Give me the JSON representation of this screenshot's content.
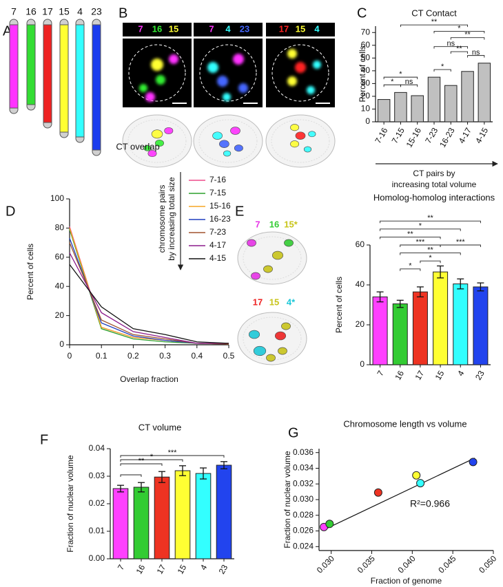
{
  "ideogram": {
    "panel": "A",
    "labels": [
      "7",
      "16",
      "17",
      "15",
      "4",
      "23"
    ],
    "colors": [
      "#ff33ff",
      "#33dd33",
      "#ee2222",
      "#ffff33",
      "#33ffff",
      "#1a3cee"
    ]
  },
  "microscopy": {
    "panel": "B",
    "headers": [
      {
        "labels": [
          "7",
          "16",
          "15"
        ],
        "colors": [
          "#ff33ff",
          "#33ee33",
          "#ffff33"
        ]
      },
      {
        "labels": [
          "7",
          "4",
          "23"
        ],
        "colors": [
          "#ff33ff",
          "#33ffff",
          "#4466ff"
        ]
      },
      {
        "labels": [
          "17",
          "15",
          "4"
        ],
        "colors": [
          "#ff2222",
          "#ffff33",
          "#33ffff"
        ]
      }
    ]
  },
  "renderings": {
    "headers": [
      {
        "labels": [
          "7",
          "16",
          "15*"
        ],
        "colors": [
          "#e633e6",
          "#33cc33",
          "#c8c41a"
        ]
      },
      {
        "labels": [
          "17",
          "15",
          "4*"
        ],
        "colors": [
          "#ee2222",
          "#c8c41a",
          "#1ec8d8"
        ]
      }
    ]
  },
  "chart_data": [
    {
      "type": "bar",
      "panel": "C",
      "title": "CT Contact",
      "categories": [
        "7-16",
        "7-15",
        "15-16",
        "7-23",
        "16-23",
        "4-17",
        "4-15"
      ],
      "values": [
        17.5,
        23,
        20.5,
        35,
        28.5,
        39.5,
        46
      ],
      "color": "#c0c0c0",
      "ylim": [
        0,
        75
      ],
      "yticks": [
        0,
        10,
        20,
        30,
        40,
        50,
        60,
        70
      ],
      "ylabel": "Percent of cells",
      "xlabel": [
        "CT pairs by",
        "increasing total volume"
      ],
      "annotations": [
        {
          "text": "**",
          "from": "7-15",
          "to": "4-17",
          "y": 76
        },
        {
          "text": "*",
          "from": "7-23",
          "to": "4-15",
          "y": 71
        },
        {
          "text": "**",
          "from": "16-23",
          "to": "4-15",
          "y": 66
        },
        {
          "text": "ns",
          "from": "7-23",
          "to": "4-17",
          "y": 59
        },
        {
          "text": "**",
          "from": "16-23",
          "to": "4-17",
          "y": 55
        },
        {
          "text": "ns",
          "from": "4-17",
          "to": "4-15",
          "y": 52
        },
        {
          "text": "*",
          "from": "7-23",
          "to": "16-23",
          "y": 41
        },
        {
          "text": "*",
          "from": "7-16",
          "to": "15-16",
          "y": 35
        },
        {
          "text": "*",
          "from": "7-16",
          "to": "7-15",
          "y": 29
        },
        {
          "text": "ns",
          "from": "7-15",
          "to": "15-16",
          "y": 29
        }
      ]
    },
    {
      "type": "line",
      "panel": "D",
      "title": "CT overlap",
      "x": [
        0,
        0.1,
        0.2,
        0.3,
        0.4,
        0.5
      ],
      "xlim": [
        0,
        0.5
      ],
      "xticks": [
        0,
        0.1,
        0.2,
        0.3,
        0.4,
        0.5
      ],
      "ylim": [
        0,
        100
      ],
      "yticks": [
        0,
        20,
        40,
        60,
        80,
        100
      ],
      "xlabel": "Overlap fraction",
      "ylabel": "Percent of cells",
      "legend_title": [
        "chromosome pairs",
        "by increasing total size"
      ],
      "series": [
        {
          "name": "7-16",
          "color": "#ee4a8a",
          "values": [
            81,
            12,
            5,
            3,
            1,
            0.5
          ]
        },
        {
          "name": "7-15",
          "color": "#2ca02c",
          "values": [
            79,
            11,
            4,
            2,
            1,
            0.5
          ]
        },
        {
          "name": "15-16",
          "color": "#f5a623",
          "values": [
            80,
            12,
            5,
            3,
            1,
            0.5
          ]
        },
        {
          "name": "16-23",
          "color": "#1f3fbf",
          "values": [
            73,
            15,
            6,
            3,
            1,
            0.5
          ]
        },
        {
          "name": "7-23",
          "color": "#a0522d",
          "values": [
            70,
            17,
            7,
            4,
            1,
            0.5
          ]
        },
        {
          "name": "4-17",
          "color": "#8b1a8b",
          "values": [
            63,
            22,
            9,
            5,
            1,
            1
          ]
        },
        {
          "name": "4-15",
          "color": "#111111",
          "values": [
            55,
            26,
            11,
            7,
            2,
            1
          ]
        }
      ]
    },
    {
      "type": "bar",
      "panel": "E",
      "title": "Homolog-homolog interactions",
      "categories": [
        "7",
        "16",
        "17",
        "15",
        "4",
        "23"
      ],
      "values": [
        34,
        30.5,
        36.5,
        46.5,
        40.5,
        39
      ],
      "errors": [
        2.5,
        1.8,
        2.5,
        3,
        2.5,
        2
      ],
      "colors": [
        "#ff40ff",
        "#33cc33",
        "#ee3322",
        "#ffff33",
        "#33ffff",
        "#2244ee"
      ],
      "ylim": [
        0,
        60
      ],
      "yticks": [
        0,
        20,
        40,
        60
      ],
      "ylabel": "Percent of cells",
      "annotations": [
        {
          "text": "**",
          "from": "7",
          "to": "23",
          "y": 72
        },
        {
          "text": "*",
          "from": "7",
          "to": "4",
          "y": 68
        },
        {
          "text": "**",
          "from": "7",
          "to": "15",
          "y": 64
        },
        {
          "text": "***",
          "from": "16",
          "to": "15",
          "y": 60
        },
        {
          "text": "***",
          "from": "15",
          "to": "23",
          "y": 60
        },
        {
          "text": "**",
          "from": "16",
          "to": "4",
          "y": 56
        },
        {
          "text": "*",
          "from": "17",
          "to": "15",
          "y": 52
        },
        {
          "text": "*",
          "from": "16",
          "to": "17",
          "y": 48
        }
      ]
    },
    {
      "type": "bar",
      "panel": "F",
      "title": "CT volume",
      "categories": [
        "7",
        "16",
        "17",
        "15",
        "4",
        "23"
      ],
      "values": [
        0.0255,
        0.026,
        0.0297,
        0.032,
        0.031,
        0.034
      ],
      "errors": [
        0.0012,
        0.0017,
        0.002,
        0.0018,
        0.002,
        0.0013
      ],
      "colors": [
        "#ff40ff",
        "#33cc33",
        "#ee3322",
        "#ffff33",
        "#33ffff",
        "#2244ee"
      ],
      "ylim": [
        0,
        0.04
      ],
      "yticks": [
        {
          "value": 0,
          "label": "0.00"
        },
        {
          "value": 0.01,
          "label": "0.01"
        },
        {
          "value": 0.02,
          "label": "0.02"
        },
        {
          "value": 0.03,
          "label": "0.03"
        },
        {
          "value": 0.04,
          "label": "0.04"
        }
      ],
      "ylabel": "Fraction of nuclear volume",
      "annotations": [
        {
          "text": "***",
          "from": "7",
          "to": "23",
          "y": 0.0375
        },
        {
          "text": "*",
          "from": "7",
          "to": "15",
          "y": 0.036
        },
        {
          "text": "**",
          "from": "7",
          "to": "17",
          "y": 0.0345
        },
        {
          "from": "7",
          "to": "16",
          "y": 0.0305
        }
      ]
    },
    {
      "type": "scatter",
      "panel": "G",
      "title": "Chromosome length vs volume",
      "x": [
        0.0291,
        0.0298,
        0.0358,
        0.0405,
        0.041,
        0.0475
      ],
      "y": [
        0.0265,
        0.0269,
        0.0309,
        0.0331,
        0.0321,
        0.0348
      ],
      "colors": [
        "#ff40ff",
        "#33cc33",
        "#ee3322",
        "#ffff33",
        "#33ffff",
        "#2244ee"
      ],
      "fit": {
        "x": [
          0.029,
          0.0477
        ],
        "y": [
          0.0261,
          0.0353
        ]
      },
      "annotation": "R²=0.966",
      "xlim": [
        0.0285,
        0.05
      ],
      "xticks": [
        {
          "value": 0.03,
          "label": "0.030"
        },
        {
          "value": 0.035,
          "label": "0.035"
        },
        {
          "value": 0.04,
          "label": "0.040"
        },
        {
          "value": 0.045,
          "label": "0.045"
        },
        {
          "value": 0.05,
          "label": "0.050"
        }
      ],
      "ylim": [
        0.0235,
        0.0365
      ],
      "yticks": [
        {
          "value": 0.024,
          "label": "0.024"
        },
        {
          "value": 0.026,
          "label": "0.026"
        },
        {
          "value": 0.028,
          "label": "0.028"
        },
        {
          "value": 0.03,
          "label": "0.030"
        },
        {
          "value": 0.032,
          "label": "0.032"
        },
        {
          "value": 0.034,
          "label": "0.034"
        },
        {
          "value": 0.036,
          "label": "0.036"
        }
      ],
      "xlabel": "Fraction of genome",
      "ylabel": "Fraction of nuclear volume"
    }
  ]
}
